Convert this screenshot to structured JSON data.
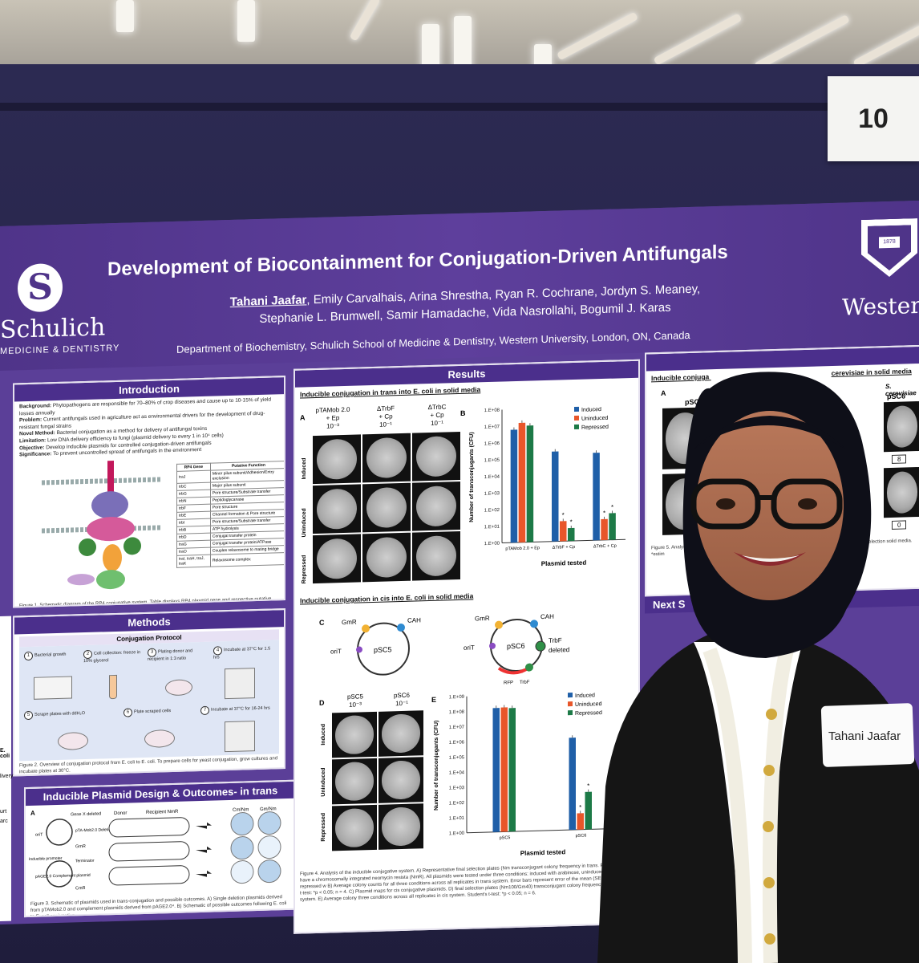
{
  "scene": {
    "number_card": "10",
    "name_tag": "Tahani Jaafar"
  },
  "poster": {
    "title": "Development of Biocontainment for Conjugation-Driven Antifungals",
    "presenter": "Tahani Jaafar",
    "authors_line1": ", Emily Carvalhais, Arina Shrestha, Ryan R. Cochrane, Jordyn S. Meaney,",
    "authors_line2": "Stephanie L. Brumwell, Samir Hamadache, Vida Nasrollahi, Bogumil J. Karas",
    "department": "Department of Biochemistry, Schulich School of Medicine & Dentistry, Western University, London, ON, Canada",
    "left_logo": {
      "name": "Schulich",
      "sub": "MEDICINE & DENTISTRY"
    },
    "right_logo": {
      "name": "Western"
    },
    "introduction": {
      "heading": "Introduction",
      "background": "Phytopathogens are responsible for 70–80% of crop diseases and cause up to 10-15% of yield losses annually",
      "problem": "Current antifungals used in agriculture act as environmental drivers for the development of drug-resistant fungal strains",
      "novel_method": "Bacterial conjugation as a method for delivery of antifungal toxins",
      "limitation": "Low DNA delivery efficiency to fungi (plasmid delivery to every 1 in 10⁴ cells)",
      "objective": "Develop inducible plasmids for controlled conjugation-driven antifungals",
      "significance": "To prevent uncontrolled spread of antifungals in the environment",
      "labels": {
        "background": "Background:",
        "problem": "Problem:",
        "novel_method": "Novel Method:",
        "limitation": "Limitation:",
        "objective": "Objective:",
        "significance": "Significance:"
      },
      "table_header": [
        "RP4 Gene",
        "Putative Function"
      ],
      "table_rows": [
        [
          "traJ",
          "Minor pilus subunit/Adhesion/Entry exclusion"
        ],
        [
          "trbC",
          "Major pilus subunit"
        ],
        [
          "trbG",
          "Pore structure/Substrate transfer"
        ],
        [
          "trbN",
          "Peptidoglycanase"
        ],
        [
          "trbF",
          "Pore structure"
        ],
        [
          "trbE",
          "Channel formation & Pore structure"
        ],
        [
          "trbI",
          "Pore structure/Substrate transfer"
        ],
        [
          "trbB",
          "ATP hydrolysis"
        ],
        [
          "trbD",
          "Conjugal transfer protein"
        ],
        [
          "traG",
          "Conjugal transfer protein/ATPase"
        ],
        [
          "traO",
          "Couples relaxosome to mating bridge"
        ],
        [
          "traI, traH, traJ, traK",
          "Relaxosome complex"
        ]
      ],
      "figure_caption": "Figure 1. Schematic diagram of the RP4 conjugative system. Table displays RP4 plasmid gene and respective putative function. Figure adapted from Gordlis-Valentin et. al⁴."
    },
    "methods": {
      "heading": "Methods",
      "protocol_heading": "Conjugation Protocol",
      "steps": [
        {
          "n": "1",
          "text": "Bacterial growth"
        },
        {
          "n": "2",
          "text": "Cell collection: freeze in 10% glycerol"
        },
        {
          "n": "3",
          "text": "Plating donor and recipient in 1:3 ratio"
        },
        {
          "n": "4",
          "text": "Incubate at 37°C for 1.5 hrs"
        },
        {
          "n": "5",
          "text": "Scrape plates with ddH₂O"
        },
        {
          "n": "6",
          "text": "Plate scraped cells"
        },
        {
          "n": "7",
          "text": "Incubate at 37°C for 16-24 hrs"
        }
      ],
      "figure_caption": "Figure 2. Overview of conjugation protocol from E. coli to E. coli. To prepare cells for yeast conjugation, grow cultures and incubate plates at 30°C."
    },
    "plasmid_design": {
      "heading": "Inducible Plasmid Design & Outcomes- in trans",
      "labels": [
        "A",
        "Gene X deleted",
        "oriT",
        "pTA-Mob2.0 Deletion plasmid",
        "GmR",
        "Donor",
        "Recipient NmR",
        "Cm/Nm",
        "Gm/Nm",
        "Inducible promoter",
        "Terminator",
        "pAGE2.0 Complement plasmid",
        "CmR"
      ],
      "figure_caption": "Figure 3. Schematic of plasmids used in trans-conjugation and possible outcomes. A) Single deletion plasmids derived from pTAMob2.0 and complement plasmids derived from pAGE2.0⁴. B) Schematic of possible outcomes following E. coli to E. coli conjugation."
    },
    "results": {
      "heading": "Results",
      "trans_title": "Inducible conjugation in trans into E. coli in solid media",
      "cis_title": "Inducible conjugation in cis into E. coli in solid media",
      "panel_letters": [
        "A",
        "B",
        "C",
        "D",
        "E"
      ],
      "trans_columns": [
        {
          "name": "pTAMob 2.0",
          "line2": "+ Ep",
          "dilution": "10⁻³"
        },
        {
          "name": "ΔTrbF",
          "line2": "+ Cp",
          "dilution": "10⁻¹"
        },
        {
          "name": "ΔTrbC",
          "line2": "+ Cp",
          "dilution": "10⁻¹"
        }
      ],
      "row_labels": [
        "Induced",
        "Uninduced",
        "Repressed"
      ],
      "cis_columns": [
        {
          "name": "pSC5",
          "dilution": "10⁻³"
        },
        {
          "name": "pSC6",
          "dilution": "10⁻¹"
        }
      ],
      "plasmid_maps": {
        "psc5": {
          "name": "pSC5",
          "genes": [
            "GmR",
            "CAH",
            "oriT"
          ]
        },
        "psc6": {
          "name": "pSC6",
          "genes": [
            "GmR",
            "CAH",
            "oriT",
            "TrbF",
            "deleted",
            "RFP",
            "TrbF"
          ]
        }
      },
      "figure4_caption": "Figure 4. Analysis of the inducible conjugative system. A) Representative final selection plates (Nm transconjugant colony frequency in trans. Recipient cells have a chromosomally integrated neomycin resista (NmR). All plasmids were tested under three conditions: induced with arabinose, uninduced, and repressed w B) Average colony counts for all three conditions across all replicates in trans system. Error bars represent error of the mean (SEM). Student's t-test: *p < 0.05; n = 4. C) Plasmid maps for cis conjugative plasmids. D) final selection plates (Nm100/Gm40) transconjugant colony frequency in cis system. E) Average colony three conditions across all replicates in cis system. Student's t-test: *p < 0.05; n = 6."
    },
    "yeast": {
      "title": "Inducible conjuga",
      "title_tail": "cerevisiae in solid media",
      "subtitle": "S. cerevisiae",
      "letter": "A",
      "columns": [
        "pSC",
        "pSC6"
      ],
      "counts": [
        "8",
        "0"
      ],
      "caption": "Figure 5. Analysis of S. cerevisiae solid. A) Representative following cis-conjugation colonies on final selection solid media. *estim",
      "next_heading": "Next S"
    },
    "left_edge_snippets": [
      "E. coli",
      "livery",
      "urt",
      "arc"
    ]
  },
  "chart_data": [
    {
      "type": "bar",
      "panel": "B",
      "categories": [
        "pTAMob 2.0 + Ep",
        "ΔTrbF + Cp",
        "ΔTrbC + Cp"
      ],
      "series": [
        {
          "name": "Induced",
          "values": [
            6000000,
            250000,
            180000
          ]
        },
        {
          "name": "Uninduced",
          "values": [
            15000000,
            16,
            18
          ]
        },
        {
          "name": "Repressed",
          "values": [
            10000000,
            6,
            40
          ]
        }
      ],
      "significance_marks": [
        "*",
        "*",
        "*",
        "*"
      ],
      "xlabel": "Plasmid tested",
      "ylabel": "Number of transconjugants (CFU)",
      "yscale": "log",
      "yticks": [
        "1.E+00",
        "1.E+01",
        "1.E+02",
        "1.E+03",
        "1.E+04",
        "1.E+05",
        "1.E+06",
        "1.E+07",
        "1.E+08"
      ],
      "ylim": [
        1,
        100000000
      ],
      "legend": "top-right",
      "colors": [
        "#1f5fa8",
        "#e8562a",
        "#1d7a47"
      ]
    },
    {
      "type": "bar",
      "panel": "E",
      "categories": [
        "pSC5",
        "pSC6"
      ],
      "series": [
        {
          "name": "Induced",
          "values": [
            150000000,
            1200000
          ]
        },
        {
          "name": "Uninduced",
          "values": [
            160000000,
            12
          ]
        },
        {
          "name": "Repressed",
          "values": [
            140000000,
            300
          ]
        }
      ],
      "significance_marks": [
        "*",
        "*"
      ],
      "xlabel": "Plasmid tested",
      "ylabel": "Number of transconjugants (CFU)",
      "yscale": "log",
      "yticks": [
        "1.E+00",
        "1.E+01",
        "1.E+02",
        "1.E+03",
        "1.E+04",
        "1.E+05",
        "1.E+06",
        "1.E+07",
        "1.E+08",
        "1.E+09"
      ],
      "ylim": [
        1,
        1000000000
      ],
      "legend": "top-right",
      "colors": [
        "#1f5fa8",
        "#e8562a",
        "#1d7a47"
      ]
    }
  ]
}
